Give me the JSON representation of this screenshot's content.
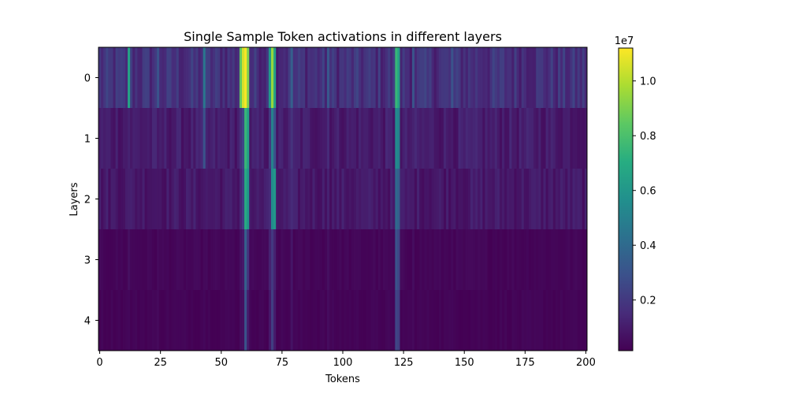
{
  "chart_data": {
    "type": "heatmap",
    "title": "Single Sample Token activations in different layers",
    "xlabel": "Tokens",
    "ylabel": "Layers",
    "x_range": [
      0,
      201
    ],
    "x_ticks": [
      "0",
      "25",
      "50",
      "75",
      "100",
      "125",
      "150",
      "175",
      "200"
    ],
    "rows": [
      "0",
      "1",
      "2",
      "3",
      "4"
    ],
    "colorbar": {
      "label": "1e7",
      "ticks": [
        "0.2",
        "0.4",
        "0.6",
        "0.8",
        "1.0"
      ],
      "tick_values": [
        2000000,
        4000000,
        6000000,
        8000000,
        10000000
      ],
      "vmin": 150000,
      "vmax": 11200000,
      "colormap": "viridis"
    },
    "base_by_layer": [
      1700000,
      1000000,
      900000,
      300000,
      250000
    ],
    "notable_columns": [
      {
        "token": 12,
        "values": [
          6500000,
          1200000,
          1100000,
          600000,
          350000
        ]
      },
      {
        "token": 24,
        "values": [
          3000000,
          900000,
          800000,
          450000,
          400000
        ]
      },
      {
        "token": 43,
        "values": [
          4500000,
          3000000,
          900000,
          400000,
          350000
        ]
      },
      {
        "token": 58,
        "values": [
          8500000,
          1800000,
          1400000,
          650000,
          500000
        ]
      },
      {
        "token": 59,
        "values": [
          10500000,
          2500000,
          2200000,
          900000,
          600000
        ]
      },
      {
        "token": 60,
        "values": [
          11100000,
          7500000,
          7000000,
          3500000,
          3000000
        ]
      },
      {
        "token": 61,
        "values": [
          9000000,
          6500000,
          6000000,
          1800000,
          1000000
        ]
      },
      {
        "token": 70,
        "values": [
          6000000,
          2000000,
          1500000,
          1200000,
          900000
        ]
      },
      {
        "token": 71,
        "values": [
          9500000,
          5000000,
          5500000,
          2000000,
          2200000
        ]
      },
      {
        "token": 72,
        "values": [
          6500000,
          3000000,
          6000000,
          1200000,
          1000000
        ]
      },
      {
        "token": 79,
        "values": [
          3500000,
          1800000,
          1500000,
          800000,
          700000
        ]
      },
      {
        "token": 94,
        "values": [
          3200000,
          1500000,
          1200000,
          600000,
          500000
        ]
      },
      {
        "token": 122,
        "values": [
          7500000,
          5500000,
          4000000,
          3000000,
          2500000
        ]
      },
      {
        "token": 123,
        "values": [
          6500000,
          5000000,
          3500000,
          2500000,
          2200000
        ]
      },
      {
        "token": 129,
        "values": [
          3000000,
          1200000,
          1000000,
          500000,
          400000
        ]
      },
      {
        "token": 145,
        "values": [
          3000000,
          1000000,
          900000,
          400000,
          350000
        ]
      }
    ]
  }
}
